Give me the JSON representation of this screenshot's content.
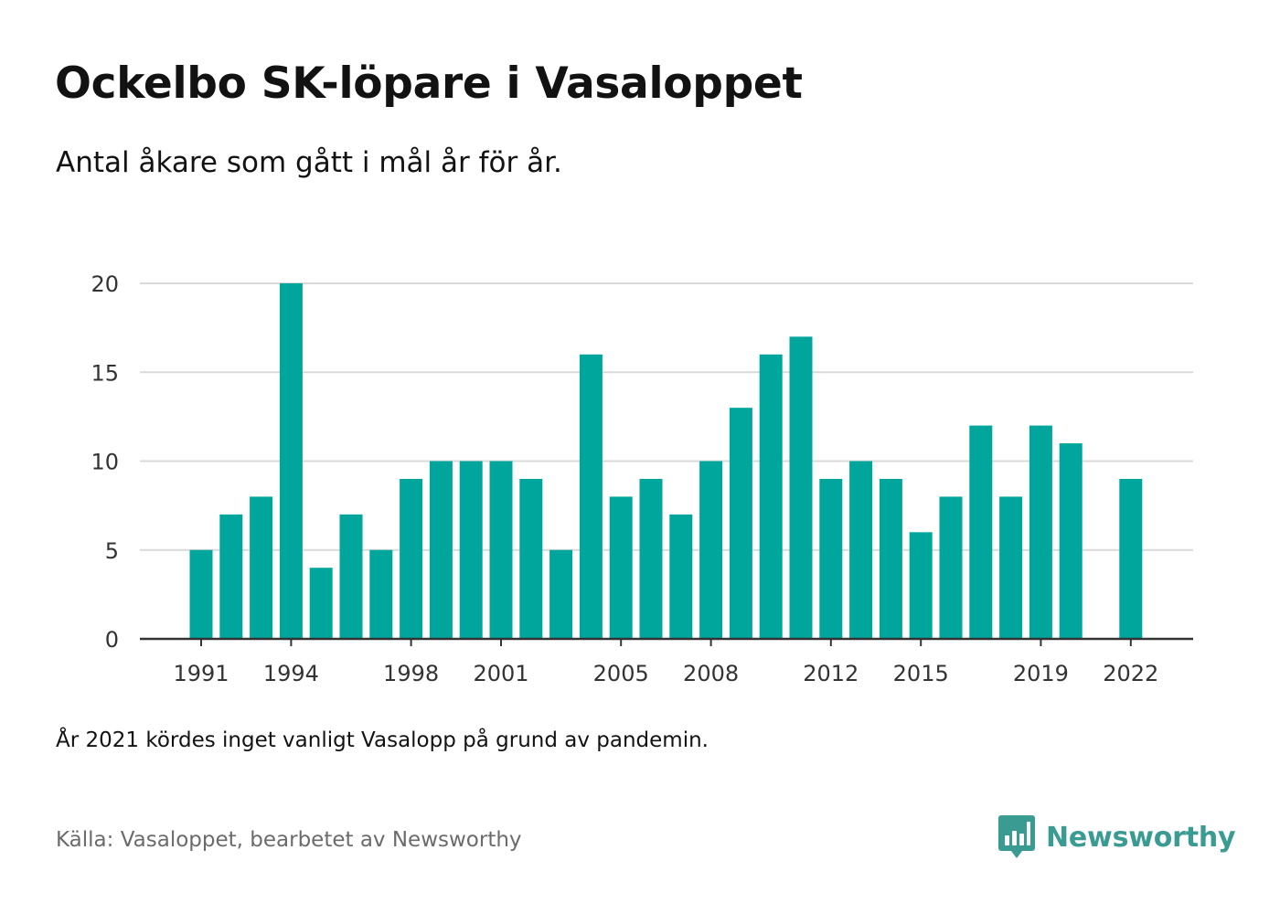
{
  "header": {
    "title": "Ockelbo SK-löpare i Vasaloppet",
    "subtitle": "Antal åkare som gått i mål år för år."
  },
  "footer": {
    "note": "År 2021 kördes inget vanligt Vasalopp på grund av pandemin.",
    "source": "Källa: Vasaloppet, bearbetet av Newsworthy"
  },
  "logo": {
    "text": "Newsworthy",
    "icon": "newsworthy-bar-chart-icon",
    "color": "#3a9b93"
  },
  "colors": {
    "bar": "#00a69c",
    "grid": "#d9d9d9",
    "axis": "#333333",
    "tick_text": "#333333"
  },
  "chart_data": {
    "type": "bar",
    "title": "Ockelbo SK-löpare i Vasaloppet",
    "subtitle": "Antal åkare som gått i mål år för år.",
    "xlabel": "",
    "ylabel": "",
    "ylim": [
      0,
      20
    ],
    "yticks": [
      0,
      5,
      10,
      15,
      20
    ],
    "grid": true,
    "legend": "none",
    "categories": [
      1991,
      1992,
      1993,
      1994,
      1995,
      1996,
      1997,
      1998,
      1999,
      2000,
      2001,
      2002,
      2003,
      2004,
      2005,
      2006,
      2007,
      2008,
      2009,
      2010,
      2011,
      2012,
      2013,
      2014,
      2015,
      2016,
      2017,
      2018,
      2019,
      2020,
      2021,
      2022
    ],
    "values": [
      5,
      7,
      8,
      20,
      4,
      7,
      5,
      9,
      10,
      10,
      10,
      9,
      5,
      16,
      8,
      9,
      7,
      10,
      13,
      16,
      17,
      9,
      10,
      9,
      6,
      8,
      12,
      8,
      12,
      11,
      null,
      9
    ],
    "xtick_labels": [
      "1991",
      "1994",
      "1998",
      "2001",
      "2005",
      "2008",
      "2012",
      "2015",
      "2019",
      "2022"
    ]
  }
}
